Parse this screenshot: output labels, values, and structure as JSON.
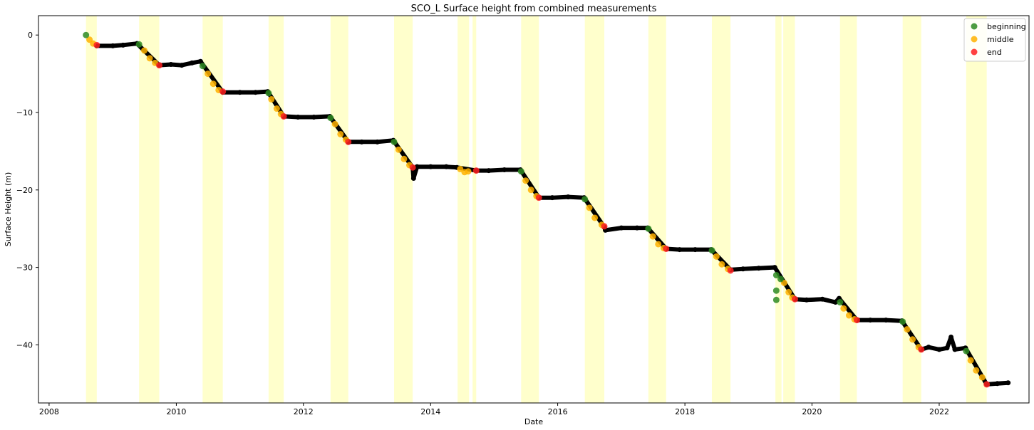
{
  "chart_data": {
    "type": "scatter",
    "title": "SCO_L Surface height from combined measurements",
    "xlabel": "Date",
    "ylabel": "Surface Height (m)",
    "xlim": [
      "2007-11-01",
      "2023-06-01"
    ],
    "ylim": [
      -47.5,
      2.5
    ],
    "x_ticks": [
      "2008",
      "2010",
      "2012",
      "2014",
      "2016",
      "2018",
      "2020",
      "2022"
    ],
    "y_ticks": [
      0,
      -10,
      -20,
      -30,
      -40
    ],
    "grid": false,
    "legend_position": "top-right",
    "colors": {
      "beginning": "#2e8b22",
      "middle": "#ffb200",
      "end": "#ff2020",
      "measurements": "#000000",
      "melt_season": "#ffffcc"
    },
    "melt_seasons": [
      [
        "2008-07-31",
        "2008-10-01"
      ],
      [
        "2009-06-01",
        "2009-09-25"
      ],
      [
        "2010-06-01",
        "2010-09-25"
      ],
      [
        "2011-06-15",
        "2011-09-10"
      ],
      [
        "2012-06-05",
        "2012-09-15"
      ],
      [
        "2013-06-05",
        "2013-09-20"
      ],
      [
        "2014-06-05",
        "2014-08-10"
      ],
      [
        "2014-08-30",
        "2014-09-20"
      ],
      [
        "2015-06-05",
        "2015-09-15"
      ],
      [
        "2016-06-05",
        "2016-09-25"
      ],
      [
        "2017-06-05",
        "2017-09-15"
      ],
      [
        "2018-06-05",
        "2018-09-20"
      ],
      [
        "2019-06-05",
        "2019-07-10"
      ],
      [
        "2019-07-20",
        "2019-09-25"
      ],
      [
        "2020-06-10",
        "2020-09-15"
      ],
      [
        "2021-06-05",
        "2021-09-20"
      ],
      [
        "2022-06-05",
        "2022-10-01"
      ]
    ],
    "series": [
      {
        "name": "measurements",
        "points": [
          [
            "2008-10-01",
            -1.4
          ],
          [
            "2009-01-01",
            -1.4
          ],
          [
            "2009-03-01",
            -1.3
          ],
          [
            "2009-05-20",
            -1.1
          ],
          [
            "2009-09-25",
            -3.9
          ],
          [
            "2009-12-01",
            -3.8
          ],
          [
            "2010-02-01",
            -3.9
          ],
          [
            "2010-04-01",
            -3.6
          ],
          [
            "2010-05-20",
            -3.4
          ],
          [
            "2010-09-25",
            -7.4
          ],
          [
            "2011-01-01",
            -7.4
          ],
          [
            "2011-04-01",
            -7.4
          ],
          [
            "2011-06-10",
            -7.3
          ],
          [
            "2011-09-10",
            -10.5
          ],
          [
            "2011-12-01",
            -10.6
          ],
          [
            "2012-03-01",
            -10.6
          ],
          [
            "2012-06-01",
            -10.5
          ],
          [
            "2012-09-15",
            -13.8
          ],
          [
            "2012-12-01",
            -13.8
          ],
          [
            "2013-03-01",
            -13.8
          ],
          [
            "2013-06-01",
            -13.6
          ],
          [
            "2013-09-20",
            -17.1
          ],
          [
            "2013-09-25",
            -18.5
          ],
          [
            "2013-10-15",
            -17.0
          ],
          [
            "2014-01-01",
            -17.0
          ],
          [
            "2014-04-01",
            -17.0
          ],
          [
            "2014-06-01",
            -17.1
          ],
          [
            "2014-09-20",
            -17.5
          ],
          [
            "2014-12-01",
            -17.5
          ],
          [
            "2015-03-01",
            -17.4
          ],
          [
            "2015-06-01",
            -17.4
          ],
          [
            "2015-09-15",
            -21.0
          ],
          [
            "2015-12-01",
            -21.0
          ],
          [
            "2016-03-01",
            -20.9
          ],
          [
            "2016-06-01",
            -21.0
          ],
          [
            "2016-09-25",
            -24.8
          ],
          [
            "2016-10-01",
            -25.2
          ],
          [
            "2017-01-01",
            -24.9
          ],
          [
            "2017-04-01",
            -24.9
          ],
          [
            "2017-06-01",
            -24.9
          ],
          [
            "2017-09-15",
            -27.6
          ],
          [
            "2017-12-01",
            -27.7
          ],
          [
            "2018-03-01",
            -27.7
          ],
          [
            "2018-06-01",
            -27.7
          ],
          [
            "2018-09-20",
            -30.3
          ],
          [
            "2018-12-01",
            -30.2
          ],
          [
            "2019-03-01",
            -30.1
          ],
          [
            "2019-06-01",
            -30.0
          ],
          [
            "2019-09-25",
            -34.1
          ],
          [
            "2019-12-01",
            -34.2
          ],
          [
            "2020-03-01",
            -34.1
          ],
          [
            "2020-05-15",
            -34.5
          ],
          [
            "2020-06-05",
            -34.0
          ],
          [
            "2020-09-15",
            -36.8
          ],
          [
            "2020-12-01",
            -36.8
          ],
          [
            "2021-03-01",
            -36.8
          ],
          [
            "2021-06-01",
            -36.9
          ],
          [
            "2021-09-20",
            -40.6
          ],
          [
            "2021-11-01",
            -40.3
          ],
          [
            "2022-01-01",
            -40.6
          ],
          [
            "2022-02-15",
            -40.4
          ],
          [
            "2022-03-10",
            -39.0
          ],
          [
            "2022-04-01",
            -40.6
          ],
          [
            "2022-06-01",
            -40.4
          ],
          [
            "2022-10-01",
            -45.1
          ],
          [
            "2022-12-01",
            -45.0
          ],
          [
            "2023-02-01",
            -44.9
          ]
        ]
      },
      {
        "name": "beginning",
        "points": [
          [
            "2008-07-31",
            0.0
          ],
          [
            "2009-06-01",
            -1.2
          ],
          [
            "2010-06-01",
            -4.0
          ],
          [
            "2011-06-15",
            -7.5
          ],
          [
            "2012-06-05",
            -10.7
          ],
          [
            "2013-06-05",
            -13.8
          ],
          [
            "2015-06-05",
            -17.6
          ],
          [
            "2016-06-05",
            -21.2
          ],
          [
            "2017-06-05",
            -25.0
          ],
          [
            "2018-06-05",
            -27.8
          ],
          [
            "2019-06-10",
            -31.0
          ],
          [
            "2019-06-10",
            -33.0
          ],
          [
            "2019-06-10",
            -34.2
          ],
          [
            "2019-07-05",
            -31.5
          ],
          [
            "2020-06-10",
            -34.5
          ],
          [
            "2021-06-05",
            -37.0
          ],
          [
            "2022-06-05",
            -40.8
          ]
        ]
      },
      {
        "name": "middle",
        "points": [
          [
            "2008-08-20",
            -0.6
          ],
          [
            "2008-09-10",
            -1.1
          ],
          [
            "2009-07-01",
            -2.0
          ],
          [
            "2009-08-01",
            -3.0
          ],
          [
            "2009-09-01",
            -3.6
          ],
          [
            "2010-07-01",
            -5.0
          ],
          [
            "2010-08-01",
            -6.3
          ],
          [
            "2010-09-01",
            -7.1
          ],
          [
            "2011-07-01",
            -8.3
          ],
          [
            "2011-08-01",
            -9.5
          ],
          [
            "2011-08-25",
            -10.2
          ],
          [
            "2012-07-01",
            -11.5
          ],
          [
            "2012-08-01",
            -12.8
          ],
          [
            "2012-09-01",
            -13.5
          ],
          [
            "2013-07-01",
            -14.8
          ],
          [
            "2013-08-01",
            -16.0
          ],
          [
            "2013-09-01",
            -16.8
          ],
          [
            "2014-06-20",
            -17.3
          ],
          [
            "2014-07-15",
            -17.7
          ],
          [
            "2014-08-05",
            -17.6
          ],
          [
            "2015-07-01",
            -18.8
          ],
          [
            "2015-08-01",
            -20.0
          ],
          [
            "2015-09-01",
            -20.8
          ],
          [
            "2016-07-01",
            -22.3
          ],
          [
            "2016-08-01",
            -23.6
          ],
          [
            "2016-09-10",
            -24.5
          ],
          [
            "2017-07-01",
            -26.0
          ],
          [
            "2017-08-01",
            -27.0
          ],
          [
            "2017-09-01",
            -27.5
          ],
          [
            "2018-07-01",
            -28.6
          ],
          [
            "2018-08-01",
            -29.6
          ],
          [
            "2018-09-05",
            -30.2
          ],
          [
            "2019-07-25",
            -32.0
          ],
          [
            "2019-08-20",
            -33.2
          ],
          [
            "2019-09-10",
            -33.9
          ],
          [
            "2020-07-01",
            -35.3
          ],
          [
            "2020-08-01",
            -36.2
          ],
          [
            "2020-09-01",
            -36.7
          ],
          [
            "2021-07-01",
            -38.0
          ],
          [
            "2021-08-01",
            -39.3
          ],
          [
            "2021-09-05",
            -40.3
          ],
          [
            "2022-07-01",
            -42.0
          ],
          [
            "2022-08-01",
            -43.3
          ],
          [
            "2022-09-05",
            -44.2
          ]
        ]
      },
      {
        "name": "end",
        "points": [
          [
            "2008-10-01",
            -1.3
          ],
          [
            "2009-09-25",
            -3.9
          ],
          [
            "2010-09-25",
            -7.3
          ],
          [
            "2011-09-10",
            -10.5
          ],
          [
            "2012-09-15",
            -13.8
          ],
          [
            "2013-09-20",
            -17.1
          ],
          [
            "2014-09-20",
            -17.5
          ],
          [
            "2015-09-15",
            -21.0
          ],
          [
            "2016-09-25",
            -24.7
          ],
          [
            "2017-09-15",
            -27.6
          ],
          [
            "2018-09-20",
            -30.4
          ],
          [
            "2019-09-25",
            -34.1
          ],
          [
            "2020-09-15",
            -36.8
          ],
          [
            "2021-09-20",
            -40.6
          ],
          [
            "2022-10-01",
            -45.1
          ]
        ]
      }
    ],
    "legend": [
      {
        "label": "beginning",
        "color": "#2e8b22"
      },
      {
        "label": "middle",
        "color": "#ffb200"
      },
      {
        "label": "end",
        "color": "#ff2020"
      }
    ]
  }
}
